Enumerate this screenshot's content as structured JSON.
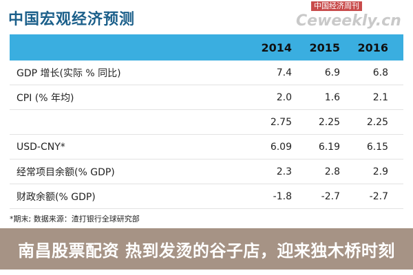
{
  "title": "中国宏观经济预测",
  "logo": {
    "top": "中国经济周刊",
    "main": "Ceweekly.cn"
  },
  "table": {
    "years": [
      "2014",
      "2015",
      "2016"
    ],
    "rows": [
      {
        "label": "GDP 增长(实际 % 同比)",
        "values": [
          "7.4",
          "6.9",
          "6.8"
        ]
      },
      {
        "label": "CPI (% 年均)",
        "values": [
          "2.0",
          "1.6",
          "2.1"
        ]
      },
      {
        "label": "",
        "values": [
          "2.75",
          "2.25",
          "2.25"
        ]
      },
      {
        "label": "USD-CNY*",
        "values": [
          "6.09",
          "6.19",
          "6.15"
        ]
      },
      {
        "label": "经常项目余额(% GDP)",
        "values": [
          "2.3",
          "2.8",
          "2.9"
        ]
      },
      {
        "label": "财政余额(% GDP)",
        "values": [
          "-1.8",
          "-2.7",
          "-2.7"
        ]
      }
    ]
  },
  "footnote": "*期末;    数据来源：渣打银行全球研究部",
  "banner": "南昌股票配资 热到发烫的谷子店，迎来独木桥时刻"
}
